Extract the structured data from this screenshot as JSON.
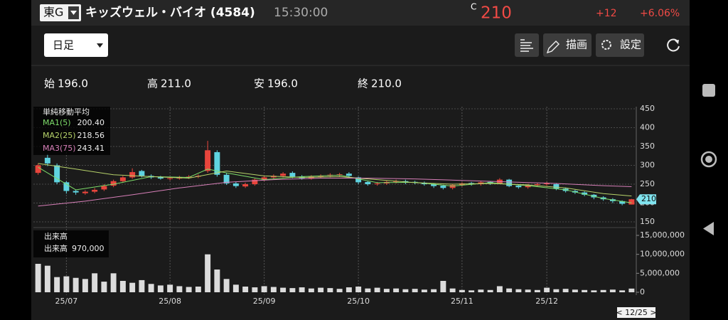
{
  "header": {
    "market": "東G",
    "name": "キッズウェル・バイオ (4584)",
    "time": "15:30:00",
    "close_mark": "C",
    "price": "210",
    "change": "+12",
    "change_pct": "+6.06%"
  },
  "toolbar": {
    "period": "日足",
    "draw": "描画",
    "settings": "設定"
  },
  "ohlc": [
    {
      "label": "始",
      "value": "196.0"
    },
    {
      "label": "高",
      "value": "211.0"
    },
    {
      "label": "安",
      "value": "196.0"
    },
    {
      "label": "終",
      "value": "210.0"
    }
  ],
  "cursor_date": "< 12/25 >",
  "chart_data": [
    {
      "type": "candlestick",
      "legend_title": "単純移動平均",
      "categories": [
        null,
        null,
        null,
        "25/07",
        null,
        null,
        null,
        null,
        null,
        null,
        null,
        null,
        null,
        null,
        "25/08",
        null,
        null,
        null,
        null,
        null,
        null,
        null,
        null,
        null,
        "25/09",
        null,
        null,
        null,
        null,
        null,
        null,
        null,
        null,
        null,
        "25/10",
        null,
        null,
        null,
        null,
        null,
        null,
        null,
        null,
        null,
        null,
        "25/11",
        null,
        null,
        null,
        null,
        null,
        null,
        null,
        null,
        "25/12",
        null,
        null,
        null,
        null,
        null,
        null,
        null,
        null,
        null
      ],
      "open": [
        280,
        320,
        300,
        255,
        232,
        226,
        230,
        236,
        246,
        258,
        268,
        285,
        272,
        268,
        264,
        265,
        268,
        270,
        285,
        335,
        275,
        252,
        244,
        250,
        262,
        268,
        272,
        280,
        270,
        266,
        270,
        272,
        275,
        278,
        268,
        256,
        250,
        252,
        256,
        258,
        256,
        254,
        250,
        246,
        240,
        248,
        253,
        250,
        256,
        252,
        262,
        246,
        242,
        248,
        250,
        250,
        238,
        232,
        228,
        222,
        215,
        210,
        205,
        196
      ],
      "high": [
        305,
        330,
        305,
        258,
        236,
        234,
        240,
        250,
        262,
        272,
        292,
        288,
        276,
        272,
        270,
        272,
        274,
        276,
        365,
        340,
        280,
        256,
        254,
        265,
        272,
        276,
        282,
        284,
        274,
        274,
        276,
        279,
        280,
        282,
        270,
        258,
        256,
        260,
        262,
        262,
        259,
        257,
        253,
        248,
        251,
        255,
        256,
        259,
        258,
        266,
        264,
        249,
        251,
        253,
        256,
        253,
        241,
        235,
        231,
        224,
        218,
        213,
        207,
        211
      ],
      "low": [
        275,
        298,
        250,
        225,
        222,
        222,
        226,
        232,
        242,
        254,
        264,
        268,
        264,
        262,
        260,
        262,
        264,
        266,
        280,
        270,
        248,
        240,
        240,
        246,
        258,
        264,
        268,
        266,
        262,
        262,
        266,
        268,
        270,
        268,
        250,
        246,
        246,
        248,
        252,
        250,
        250,
        246,
        240,
        236,
        236,
        244,
        246,
        246,
        248,
        250,
        242,
        238,
        238,
        244,
        246,
        234,
        228,
        224,
        218,
        210,
        206,
        200,
        194,
        196
      ],
      "close": [
        300,
        305,
        255,
        232,
        228,
        230,
        235,
        245,
        258,
        268,
        282,
        272,
        268,
        265,
        266,
        268,
        270,
        272,
        340,
        275,
        252,
        245,
        250,
        262,
        268,
        272,
        278,
        270,
        266,
        270,
        272,
        275,
        276,
        272,
        255,
        250,
        252,
        256,
        258,
        255,
        254,
        250,
        245,
        240,
        248,
        252,
        250,
        255,
        252,
        262,
        245,
        242,
        248,
        250,
        252,
        238,
        232,
        228,
        222,
        215,
        210,
        205,
        198,
        210
      ],
      "up_color": "#e8453c",
      "down_color": "#5fd3e0",
      "ylim": [
        150,
        450
      ],
      "yticks": [
        150,
        200,
        250,
        300,
        350,
        400,
        450
      ],
      "grid": true,
      "series": [
        {
          "name": "MA1(5)",
          "color": "#7ddc6a",
          "x": [
            0,
            4,
            8,
            12,
            16,
            18,
            20,
            24,
            28,
            32,
            36,
            40,
            44,
            48,
            52,
            56,
            60,
            63
          ],
          "values": [
            295,
            235,
            250,
            270,
            268,
            290,
            280,
            262,
            270,
            274,
            254,
            255,
            245,
            254,
            246,
            235,
            212,
            200.4
          ],
          "value_labels": [
            null,
            null,
            null,
            null,
            null,
            null,
            null,
            null,
            null,
            null,
            null,
            null,
            null,
            null,
            null,
            null,
            null,
            "200.40"
          ]
        },
        {
          "name": "MA2(25)",
          "color": "#b7d36a",
          "x": [
            0,
            4,
            8,
            12,
            16,
            20,
            24,
            28,
            32,
            36,
            40,
            44,
            48,
            52,
            56,
            60,
            63
          ],
          "values": [
            305,
            290,
            275,
            270,
            266,
            285,
            272,
            268,
            270,
            262,
            254,
            250,
            252,
            248,
            240,
            225,
            218.56
          ],
          "value_labels": [
            null,
            null,
            null,
            null,
            null,
            null,
            null,
            null,
            null,
            null,
            null,
            null,
            null,
            null,
            null,
            null,
            "218.56"
          ]
        },
        {
          "name": "MA3(75)",
          "color": "#d77fb8",
          "x": [
            0,
            5,
            10,
            15,
            20,
            25,
            30,
            35,
            40,
            45,
            50,
            55,
            60,
            63
          ],
          "values": [
            192,
            205,
            222,
            240,
            255,
            262,
            266,
            266,
            264,
            260,
            256,
            252,
            246,
            243.41
          ],
          "value_labels": [
            null,
            null,
            null,
            null,
            null,
            null,
            null,
            null,
            null,
            null,
            null,
            null,
            null,
            "243.41"
          ]
        }
      ]
    },
    {
      "type": "bar",
      "title": "出来高",
      "ylim": [
        0,
        15000000
      ],
      "yticks": [
        0,
        {
          "value": 5000000,
          "label": "5,000,000"
        },
        {
          "value": 10000000,
          "label": "10,000,000"
        },
        {
          "value": 15000000,
          "label": "15,000,000"
        }
      ],
      "series": [
        {
          "name": "出来高",
          "color": "#dcdcdc",
          "values": [
            7500000,
            7000000,
            4000000,
            4200000,
            3800000,
            3500000,
            5000000,
            2800000,
            5000000,
            3000000,
            2500000,
            3200000,
            2200000,
            1800000,
            2000000,
            1600000,
            1400000,
            1500000,
            10000000,
            6000000,
            3500000,
            2000000,
            1500000,
            1300000,
            1600000,
            1400000,
            1200000,
            1100000,
            1300000,
            1000000,
            1200000,
            1100000,
            900000,
            1300000,
            1500000,
            1000000,
            1200000,
            900000,
            1000000,
            800000,
            900000,
            700000,
            800000,
            3000000,
            1000000,
            600000,
            500000,
            700000,
            600000,
            1600000,
            1000000,
            800000,
            700000,
            600000,
            1200000,
            800000,
            900000,
            700000,
            600000,
            500000,
            600000,
            700000,
            500000,
            970000
          ],
          "value_labels": [
            null,
            null,
            null,
            null,
            null,
            null,
            null,
            null,
            null,
            null,
            null,
            null,
            null,
            null,
            null,
            null,
            null,
            null,
            null,
            null,
            null,
            null,
            null,
            null,
            null,
            null,
            null,
            null,
            null,
            null,
            null,
            null,
            null,
            null,
            null,
            null,
            null,
            null,
            null,
            null,
            null,
            null,
            null,
            null,
            null,
            null,
            null,
            null,
            null,
            null,
            null,
            null,
            null,
            null,
            null,
            null,
            null,
            null,
            null,
            null,
            null,
            null,
            null,
            "970,000"
          ]
        }
      ]
    }
  ]
}
